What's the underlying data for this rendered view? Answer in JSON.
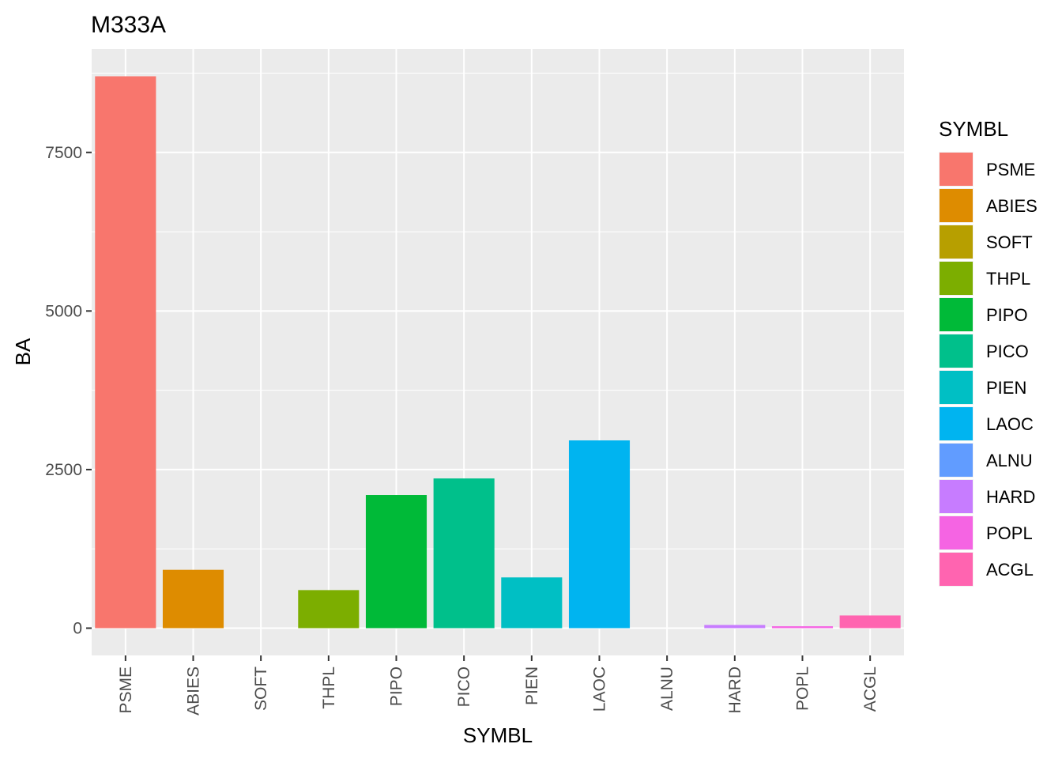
{
  "chart_data": {
    "type": "bar",
    "title": "M333A",
    "xlabel": "SYMBL",
    "ylabel": "BA",
    "categories": [
      "PSME",
      "ABIES",
      "SOFT",
      "THPL",
      "PIPO",
      "PICO",
      "PIEN",
      "LAOC",
      "ALNU",
      "HARD",
      "POPL",
      "ACGL"
    ],
    "values": [
      8700,
      920,
      0,
      600,
      2100,
      2360,
      800,
      2960,
      0,
      50,
      30,
      200
    ],
    "colors": [
      "#F8766D",
      "#DE8C00",
      "#B79F00",
      "#7CAE00",
      "#00BA38",
      "#00C08B",
      "#00BFC4",
      "#00B4F0",
      "#619CFF",
      "#C77CFF",
      "#F564E3",
      "#FF64B0"
    ],
    "ylim": [
      -430,
      9130
    ],
    "yticks": [
      0,
      2500,
      5000,
      7500
    ],
    "ytick_labels": [
      "0",
      "2500",
      "5000",
      "7500"
    ],
    "grid": true,
    "background": "#EBEBEB",
    "legend": {
      "title": "SYMBL",
      "position": "right",
      "entries": [
        "PSME",
        "ABIES",
        "SOFT",
        "THPL",
        "PIPO",
        "PICO",
        "PIEN",
        "LAOC",
        "ALNU",
        "HARD",
        "POPL",
        "ACGL"
      ]
    }
  }
}
